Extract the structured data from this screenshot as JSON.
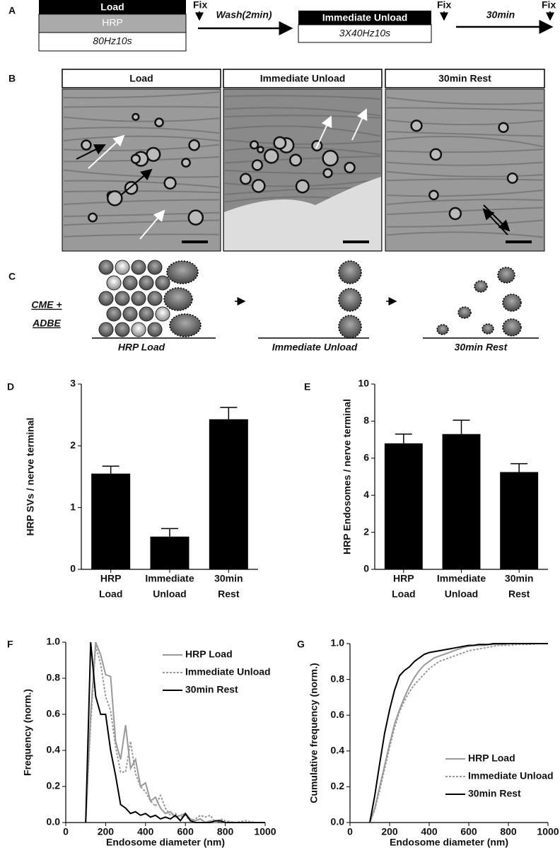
{
  "panel_a": {
    "label": "A",
    "load_box": {
      "title": "Load",
      "row2": "HRP",
      "row3": "80Hz10s"
    },
    "fix_labels": [
      "Fix",
      "Fix",
      "Fix"
    ],
    "wash": "Wash(2min)",
    "unload_box": {
      "title": "Immediate Unload",
      "row2": "3X40Hz10s"
    },
    "rest": "30min"
  },
  "panel_b": {
    "label": "B",
    "headers": [
      "Load",
      "Immediate Unload",
      "30min Rest"
    ]
  },
  "panel_c": {
    "label": "C",
    "pathway": [
      "CME +",
      "ADBE"
    ],
    "stages": [
      "HRP Load",
      "Immediate Unload",
      "30min Rest"
    ]
  },
  "chart_data": [
    {
      "type": "bar",
      "panel": "D",
      "ylabel": "HRP SVs / nerve terminal",
      "categories": [
        [
          "HRP",
          "Load"
        ],
        [
          "Immediate",
          "Unload"
        ],
        [
          "30min",
          "Rest"
        ]
      ],
      "values": [
        1.55,
        0.53,
        2.43
      ],
      "errors": [
        0.12,
        0.13,
        0.19
      ],
      "color": "#000000",
      "ylim": [
        0,
        3
      ],
      "yticks": [
        0,
        1,
        2,
        3
      ]
    },
    {
      "type": "bar",
      "panel": "E",
      "ylabel": "HRP Endosomes / nerve terminal",
      "categories": [
        [
          "HRP",
          "Load"
        ],
        [
          "Immediate",
          "Unload"
        ],
        [
          "30min",
          "Rest"
        ]
      ],
      "values": [
        6.8,
        7.3,
        5.25
      ],
      "errors": [
        0.5,
        0.75,
        0.45
      ],
      "color": "#000000",
      "ylim": [
        0,
        10
      ],
      "yticks": [
        0,
        2,
        4,
        6,
        8,
        10
      ]
    },
    {
      "type": "line",
      "panel": "F",
      "xlabel": "Endosome diameter (nm)",
      "ylabel": "Frequency (norm.)",
      "x": [
        100,
        125,
        150,
        175,
        200,
        225,
        250,
        275,
        300,
        325,
        350,
        375,
        400,
        425,
        450,
        475,
        500,
        525,
        550,
        575,
        600,
        625,
        650,
        675,
        700,
        725,
        750,
        775,
        800,
        850,
        900,
        950,
        1000
      ],
      "series": [
        {
          "name": "HRP Load",
          "color": "#999999",
          "style": "solid",
          "values": [
            0,
            0.6,
            1.0,
            0.93,
            0.82,
            0.81,
            0.45,
            0.35,
            0.54,
            0.3,
            0.35,
            0.2,
            0.22,
            0.12,
            0.14,
            0.08,
            0.05,
            0.06,
            0.03,
            0.04,
            0.05,
            0.02,
            0.01,
            0.02,
            0,
            0.01,
            0,
            0.01,
            0,
            0,
            0,
            0,
            0
          ]
        },
        {
          "name": "Immediate Unload",
          "color": "#999999",
          "style": "dotted",
          "values": [
            0,
            0.55,
            0.98,
            0.88,
            0.7,
            0.62,
            0.42,
            0.28,
            0.28,
            0.45,
            0.27,
            0.2,
            0.17,
            0.12,
            0.09,
            0.15,
            0.08,
            0.04,
            0.05,
            0.03,
            0.04,
            0.01,
            0.02,
            0.04,
            0.03,
            0.04,
            0,
            0.02,
            0.01,
            0,
            0.01,
            0,
            0
          ]
        },
        {
          "name": "30min Rest",
          "color": "#000000",
          "style": "solid",
          "values": [
            0,
            1.0,
            0.7,
            0.6,
            0.6,
            0.4,
            0.26,
            0.1,
            0.08,
            0.05,
            0.06,
            0.04,
            0.05,
            0.03,
            0.04,
            0.02,
            0.03,
            0.02,
            0.04,
            0.01,
            0.05,
            0.01,
            0,
            0,
            0,
            0,
            0.01,
            0.01,
            0,
            0,
            0,
            0,
            0
          ]
        }
      ],
      "xlim": [
        0,
        1000
      ],
      "xticks": [
        0,
        200,
        400,
        600,
        800,
        1000
      ],
      "ylim": [
        0,
        1
      ],
      "yticks": [
        {
          "value": 0,
          "label": "0.0"
        },
        0.2,
        0.4,
        0.6,
        0.8,
        {
          "value": 1,
          "label": "1.0"
        }
      ],
      "legend": "upper right"
    },
    {
      "type": "line",
      "panel": "G",
      "xlabel": "Endosome diameter (nm)",
      "ylabel": "Cumulative frequency (norm.)",
      "x": [
        100,
        125,
        150,
        175,
        200,
        225,
        250,
        275,
        300,
        325,
        350,
        375,
        400,
        425,
        450,
        475,
        500,
        525,
        550,
        575,
        600,
        625,
        650,
        675,
        700,
        725,
        750,
        775,
        800,
        850,
        900,
        950,
        1000
      ],
      "series": [
        {
          "name": "HRP Load",
          "color": "#999999",
          "style": "solid",
          "values": [
            0,
            0.08,
            0.2,
            0.32,
            0.44,
            0.55,
            0.63,
            0.7,
            0.76,
            0.81,
            0.85,
            0.88,
            0.9,
            0.92,
            0.93,
            0.94,
            0.95,
            0.96,
            0.97,
            0.98,
            0.985,
            0.99,
            0.99,
            0.99,
            0.995,
            0.995,
            0.995,
            0.995,
            1,
            1,
            1,
            1,
            1
          ]
        },
        {
          "name": "Immediate Unload",
          "color": "#999999",
          "style": "dotted",
          "values": [
            0,
            0.07,
            0.18,
            0.3,
            0.42,
            0.53,
            0.62,
            0.68,
            0.73,
            0.77,
            0.8,
            0.83,
            0.86,
            0.88,
            0.9,
            0.91,
            0.92,
            0.93,
            0.94,
            0.95,
            0.96,
            0.965,
            0.97,
            0.975,
            0.98,
            0.985,
            0.99,
            0.99,
            0.99,
            0.995,
            0.995,
            1,
            1
          ]
        },
        {
          "name": "30min Rest",
          "color": "#000000",
          "style": "solid",
          "values": [
            0,
            0.15,
            0.33,
            0.5,
            0.63,
            0.74,
            0.82,
            0.85,
            0.87,
            0.9,
            0.92,
            0.94,
            0.95,
            0.955,
            0.96,
            0.965,
            0.97,
            0.975,
            0.98,
            0.985,
            0.99,
            0.99,
            0.995,
            0.995,
            0.995,
            1,
            1,
            1,
            1,
            1,
            1,
            1,
            1
          ]
        }
      ],
      "xlim": [
        0,
        1000
      ],
      "xticks": [
        0,
        200,
        400,
        600,
        800,
        1000
      ],
      "ylim": [
        0,
        1
      ],
      "yticks": [
        {
          "value": 0,
          "label": "0.0"
        },
        0.2,
        0.4,
        0.6,
        0.8,
        {
          "value": 1,
          "label": "1.0"
        }
      ],
      "legend": "lower right"
    }
  ]
}
